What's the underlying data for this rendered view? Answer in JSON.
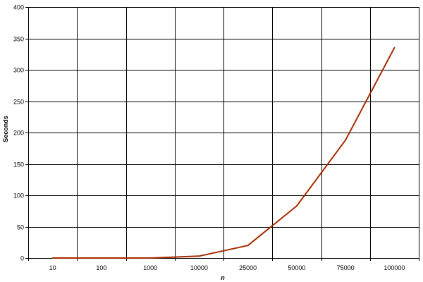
{
  "chart_data": {
    "type": "line",
    "title": "",
    "xlabel": "n",
    "ylabel": "Seconds",
    "categories": [
      "10",
      "100",
      "1000",
      "10000",
      "25000",
      "50000",
      "75000",
      "100000"
    ],
    "series": [
      {
        "values": [
          0,
          0,
          0,
          3,
          20,
          83,
          188,
          335
        ],
        "color": "#a52a00"
      }
    ],
    "ylim": [
      0,
      400
    ],
    "yticks": [
      0,
      50,
      100,
      150,
      200,
      250,
      300,
      350,
      400
    ],
    "grid": true,
    "legend": "none",
    "colors": {
      "gridline": "#000000",
      "axis": "#000000",
      "line": "#a52a00",
      "background": "#ffffff"
    }
  }
}
